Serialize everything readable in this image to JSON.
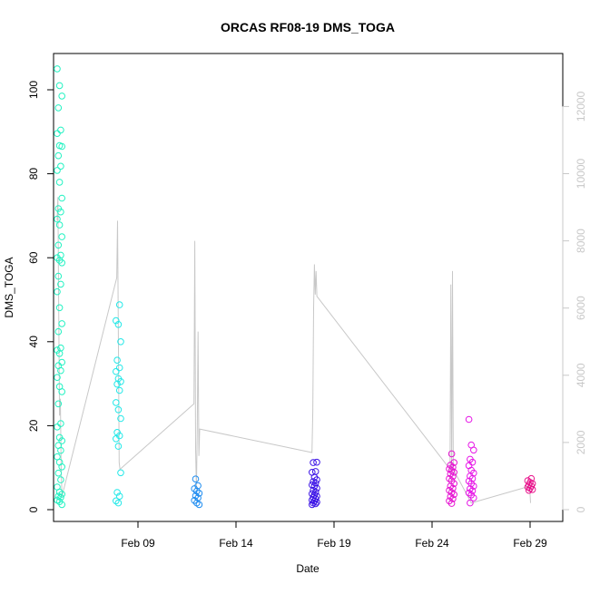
{
  "chart_data": {
    "type": "scatter",
    "title": "ORCAS RF08-19 DMS_TOGA",
    "xlabel": "Date",
    "ylabel": "DMS_TOGA",
    "x_ticks": [
      "Feb 09",
      "Feb 14",
      "Feb 19",
      "Feb 24",
      "Feb 29"
    ],
    "y_ticks": [
      "0",
      "20",
      "40",
      "60",
      "80",
      "100"
    ],
    "y2_ticks": [
      "0",
      "2000",
      "4000",
      "6000",
      "8000",
      "10000",
      "12000"
    ],
    "ylim": [
      0,
      108
    ],
    "y2lim": [
      0,
      12350
    ],
    "grid": false,
    "secondary_axis_color": "#c8c8c8",
    "line_color": "#c8c8c8",
    "scatter_series": [
      {
        "date": "Feb 05",
        "color": "#22f2c2",
        "values": [
          105,
          101,
          98.5,
          95.7,
          90.4,
          89.6,
          86.7,
          86.5,
          84.3,
          81.8,
          80.8,
          78,
          74.2,
          71.7,
          70.9,
          69.2,
          67.8,
          65,
          63,
          60.6,
          60,
          59.4,
          58.8,
          55.6,
          53.7,
          51.9,
          48.1,
          44.3,
          42.4,
          38.5,
          38,
          37.2,
          35.1,
          34.3,
          33.1,
          31.5,
          29.3,
          28.1,
          25.2,
          20.5,
          19.7,
          17.2,
          16.4,
          15.3,
          14.1,
          12.6,
          11.3,
          10.2,
          8.7,
          7.1,
          5.4,
          4.2,
          3.7,
          3.2,
          2.9,
          2.3,
          1.9,
          1.2
        ]
      },
      {
        "date": "Feb 08",
        "color": "#22e8e8",
        "values": [
          48.8,
          45,
          44.1,
          40,
          35.6,
          33.8,
          32.9,
          31.2,
          30.5,
          29.9,
          28.4,
          25.5,
          23.8,
          21.7,
          18.4,
          17.6,
          16.9,
          15.1,
          8.8,
          4.1,
          3.2,
          2.1,
          1.6
        ]
      },
      {
        "date": "Feb 12",
        "color": "#1e8cf0",
        "values": [
          7.3,
          5.7,
          5,
          4.4,
          3.9,
          3.3,
          2.8,
          2.2,
          1.6,
          1.2
        ]
      },
      {
        "date": "Feb 18",
        "color": "#3c14e6",
        "values": [
          11.3,
          11.2,
          9.1,
          8.9,
          7.7,
          7.1,
          6.7,
          6.3,
          5.9,
          5.6,
          5.1,
          4.6,
          4.2,
          3.8,
          3.5,
          3.2,
          2.9,
          2.6,
          2.3,
          2,
          1.8,
          1.6,
          1.4,
          1.2
        ]
      },
      {
        "date": "Feb 25",
        "color": "#e614d2",
        "values": [
          13.3,
          11.2,
          10.6,
          10.1,
          9.7,
          9.3,
          8.9,
          8.5,
          7.9,
          7.4,
          6.9,
          6.2,
          5.6,
          5.1,
          4.6,
          4.1,
          3.6,
          3.1,
          2.6,
          2.1,
          1.5
        ]
      },
      {
        "date": "Feb 26",
        "color": "#e614e6",
        "values": [
          21.5,
          15.4,
          14.2,
          12,
          11.3,
          10.5,
          9.4,
          8.7,
          8,
          7.4,
          6.8,
          6.2,
          5.6,
          5,
          4.5,
          4,
          3.5,
          2.8,
          1.6
        ]
      },
      {
        "date": "Feb 29",
        "color": "#e8148c",
        "values": [
          7.4,
          6.9,
          6.5,
          6.2,
          5.9,
          5.6,
          5.4,
          5.1,
          4.8,
          4.6
        ]
      }
    ],
    "line_series_y2": [
      {
        "date": "Feb 05",
        "values": [
          8600,
          9300,
          5900,
          2800,
          3300,
          1200,
          400
        ]
      },
      {
        "date": "Feb 08",
        "values": [
          6900,
          8600,
          5200,
          1400,
          1200
        ]
      },
      {
        "date": "Feb 12",
        "values": [
          3150,
          8000,
          1800,
          600,
          2400,
          5300,
          1600,
          2400
        ]
      },
      {
        "date": "Feb 18",
        "values": [
          1700,
          2900,
          6000,
          7300,
          6400,
          7100,
          6350
        ]
      },
      {
        "date": "Feb 25",
        "values": [
          1200,
          6700,
          1100,
          7100,
          1200
        ]
      },
      {
        "date": "Feb 26",
        "values": [
          200
        ]
      },
      {
        "date": "Feb 29",
        "values": [
          700,
          200
        ]
      }
    ]
  }
}
